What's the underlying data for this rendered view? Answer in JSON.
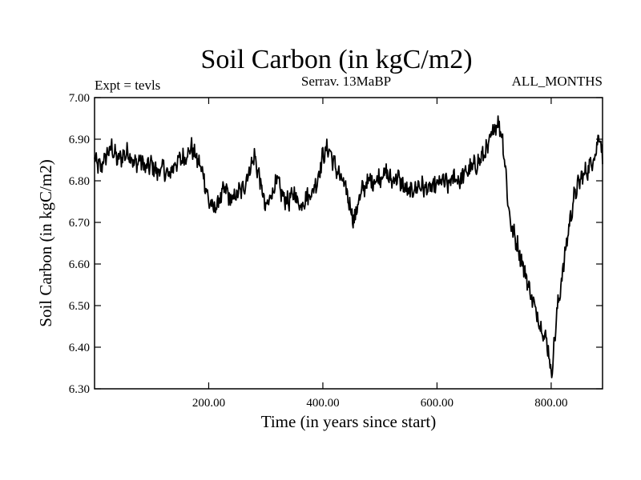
{
  "chart_data": {
    "type": "line",
    "title": "Soil Carbon (in kgC/m2)",
    "subtitle_left": "Expt = tevls",
    "subtitle_center": "Serrav.   13MaBP",
    "subtitle_right": "ALL_MONTHS",
    "xlabel": "Time (in years since start)",
    "ylabel": "Soil Carbon (in kgC/m2)",
    "xlim": [
      0,
      890
    ],
    "ylim": [
      6.3,
      7.0
    ],
    "xticks": [
      200,
      400,
      600,
      800
    ],
    "xtick_labels": [
      "200.00",
      "400.00",
      "600.00",
      "800.00"
    ],
    "yticks": [
      6.3,
      6.4,
      6.5,
      6.6,
      6.7,
      6.8,
      6.9,
      7.0
    ],
    "ytick_labels": [
      "6.30",
      "6.40",
      "6.50",
      "6.60",
      "6.70",
      "6.80",
      "6.90",
      "7.00"
    ],
    "grid": false,
    "series": [
      {
        "name": "Soil Carbon",
        "color": "#000000",
        "noise_amplitude": 0.02,
        "x": [
          0,
          10,
          20,
          30,
          40,
          50,
          60,
          70,
          80,
          90,
          100,
          110,
          120,
          130,
          140,
          150,
          160,
          170,
          180,
          190,
          200,
          210,
          220,
          230,
          240,
          250,
          260,
          270,
          280,
          290,
          300,
          310,
          320,
          330,
          340,
          350,
          360,
          370,
          380,
          390,
          400,
          410,
          420,
          430,
          440,
          450,
          455,
          460,
          470,
          480,
          490,
          500,
          510,
          520,
          530,
          540,
          550,
          560,
          570,
          580,
          590,
          600,
          610,
          620,
          630,
          640,
          650,
          660,
          670,
          680,
          690,
          700,
          705,
          710,
          715,
          720,
          725,
          730,
          740,
          750,
          760,
          770,
          780,
          790,
          795,
          800,
          805,
          810,
          820,
          830,
          840,
          850,
          860,
          870,
          880,
          885,
          890
        ],
        "values": [
          6.85,
          6.83,
          6.86,
          6.88,
          6.85,
          6.86,
          6.87,
          6.84,
          6.85,
          6.83,
          6.84,
          6.82,
          6.83,
          6.81,
          6.84,
          6.85,
          6.86,
          6.88,
          6.85,
          6.82,
          6.75,
          6.73,
          6.76,
          6.78,
          6.75,
          6.77,
          6.78,
          6.82,
          6.86,
          6.8,
          6.73,
          6.77,
          6.8,
          6.76,
          6.75,
          6.77,
          6.74,
          6.76,
          6.77,
          6.8,
          6.86,
          6.88,
          6.84,
          6.81,
          6.78,
          6.73,
          6.7,
          6.74,
          6.78,
          6.8,
          6.8,
          6.81,
          6.82,
          6.8,
          6.81,
          6.79,
          6.77,
          6.78,
          6.79,
          6.78,
          6.78,
          6.79,
          6.8,
          6.79,
          6.81,
          6.8,
          6.82,
          6.83,
          6.84,
          6.86,
          6.88,
          6.93,
          6.94,
          6.93,
          6.9,
          6.83,
          6.74,
          6.69,
          6.65,
          6.6,
          6.55,
          6.5,
          6.46,
          6.42,
          6.4,
          6.33,
          6.4,
          6.48,
          6.58,
          6.68,
          6.76,
          6.8,
          6.82,
          6.84,
          6.88,
          6.92,
          6.85
        ]
      }
    ]
  }
}
